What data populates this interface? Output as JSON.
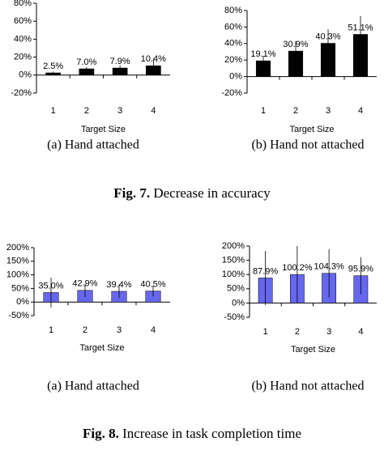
{
  "chart_data": [
    {
      "type": "bar",
      "caption": "(a) Hand attached",
      "x_label": "Target Size",
      "categories": [
        "1",
        "2",
        "3",
        "4"
      ],
      "values": [
        2.5,
        7.0,
        7.9,
        10.4
      ],
      "value_labels": [
        "2.5%",
        "7.0%",
        "7.9%",
        "10.4%"
      ],
      "errors": [
        1.5,
        2,
        3,
        8
      ],
      "color": "#000000",
      "ylim": [
        -20,
        80
      ],
      "yticks": [
        {
          "value": -20,
          "label": "-20%"
        },
        {
          "value": 0,
          "label": "0%"
        },
        {
          "value": 20,
          "label": "20%"
        },
        {
          "value": 40,
          "label": "40%"
        },
        {
          "value": 60,
          "label": "60%"
        },
        {
          "value": 80,
          "label": "80%"
        }
      ]
    },
    {
      "type": "bar",
      "caption": "(b) Hand not attached",
      "x_label": "Target Size",
      "categories": [
        "1",
        "2",
        "3",
        "4"
      ],
      "values": [
        19.1,
        30.9,
        40.3,
        51.1
      ],
      "value_labels": [
        "19.1%",
        "30.9%",
        "40.3%",
        "51.1%"
      ],
      "errors": [
        6,
        12,
        17,
        22
      ],
      "color": "#000000",
      "ylim": [
        -20,
        80
      ],
      "yticks": [
        {
          "value": -20,
          "label": "-20%"
        },
        {
          "value": 0,
          "label": "0%"
        },
        {
          "value": 20,
          "label": "20%"
        },
        {
          "value": 40,
          "label": "40%"
        },
        {
          "value": 60,
          "label": "60%"
        },
        {
          "value": 80,
          "label": "80%"
        }
      ]
    },
    {
      "type": "bar",
      "caption": "(a) Hand attached",
      "x_label": "Target Size",
      "categories": [
        "1",
        "2",
        "3",
        "4"
      ],
      "values": [
        35.0,
        42.9,
        39.4,
        40.5
      ],
      "value_labels": [
        "35.0%",
        "42.9%",
        "39.4%",
        "40.5%"
      ],
      "errors": [
        55,
        25,
        25,
        20
      ],
      "color": "#6666ee",
      "ylim": [
        -50,
        200
      ],
      "yticks": [
        {
          "value": -50,
          "label": "-50%"
        },
        {
          "value": 0,
          "label": "0%"
        },
        {
          "value": 50,
          "label": "50%"
        },
        {
          "value": 100,
          "label": "100%"
        },
        {
          "value": 150,
          "label": "150%"
        },
        {
          "value": 200,
          "label": "200%"
        }
      ]
    },
    {
      "type": "bar",
      "caption": "(b) Hand not attached",
      "x_label": "Target Size",
      "categories": [
        "1",
        "2",
        "3",
        "4"
      ],
      "values": [
        87.9,
        100.2,
        104.3,
        95.9
      ],
      "value_labels": [
        "87.9%",
        "100.2%",
        "104.3%",
        "95.9%"
      ],
      "errors": [
        95,
        100,
        85,
        65
      ],
      "color": "#6666ee",
      "ylim": [
        -50,
        200
      ],
      "yticks": [
        {
          "value": -50,
          "label": "-50%"
        },
        {
          "value": 0,
          "label": "0%"
        },
        {
          "value": 50,
          "label": "50%"
        },
        {
          "value": 100,
          "label": "100%"
        },
        {
          "value": 150,
          "label": "150%"
        },
        {
          "value": 200,
          "label": "200%"
        }
      ]
    }
  ],
  "figures": [
    {
      "label": "Fig. 7.",
      "text": "Decrease in accuracy"
    },
    {
      "label": "Fig. 8.",
      "text": "Increase in task completion time"
    }
  ]
}
